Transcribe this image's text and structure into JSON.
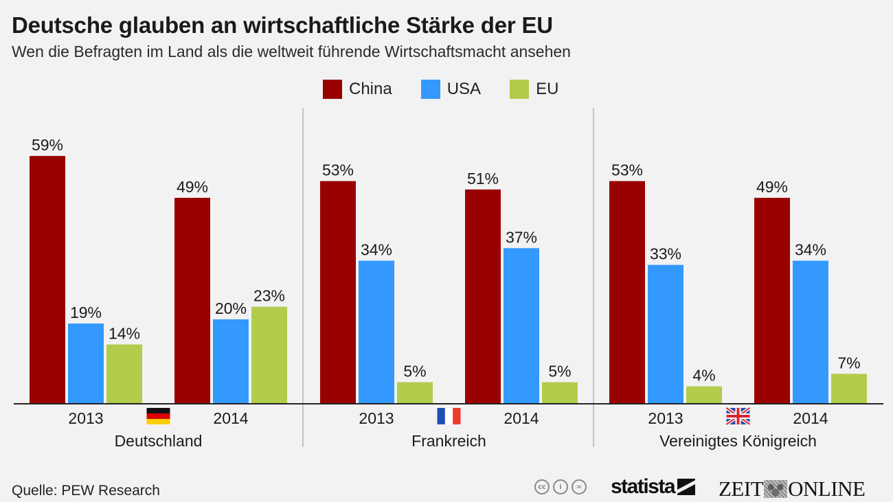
{
  "header": {
    "title": "Deutsche glauben an wirtschaftliche Stärke der EU",
    "subtitle": "Wen die Befragten im Land als die weltweit führende Wirtschaftsmacht ansehen"
  },
  "legend": [
    {
      "label": "China",
      "color": "#990000"
    },
    {
      "label": "USA",
      "color": "#3399ff"
    },
    {
      "label": "EU",
      "color": "#b2cc4c"
    }
  ],
  "chart_data": {
    "type": "bar",
    "title": "Deutsche glauben an wirtschaftliche Stärke der EU",
    "subtitle": "Wen die Befragten im Land als die weltweit führende Wirtschaftsmacht ansehen",
    "xlabel": "",
    "ylabel": "",
    "unit": "%",
    "ylim": [
      0,
      60
    ],
    "grid": false,
    "legend_position": "top-center",
    "series_names": [
      "China",
      "USA",
      "EU"
    ],
    "series_colors": [
      "#990000",
      "#3399ff",
      "#b2cc4c"
    ],
    "groups": [
      {
        "country": "Deutschland",
        "flag": "germany-flag",
        "years": [
          {
            "year": "2013",
            "values": [
              59,
              19,
              14
            ]
          },
          {
            "year": "2014",
            "values": [
              49,
              20,
              23
            ]
          }
        ]
      },
      {
        "country": "Frankreich",
        "flag": "france-flag",
        "years": [
          {
            "year": "2013",
            "values": [
              53,
              34,
              5
            ]
          },
          {
            "year": "2014",
            "values": [
              51,
              37,
              5
            ]
          }
        ]
      },
      {
        "country": "Vereinigtes Königreich",
        "flag": "uk-flag",
        "years": [
          {
            "year": "2013",
            "values": [
              53,
              33,
              4
            ]
          },
          {
            "year": "2014",
            "values": [
              49,
              34,
              7
            ]
          }
        ]
      }
    ]
  },
  "footer": {
    "source": "Quelle: PEW Research",
    "license_icons": [
      "cc-icon",
      "by-icon",
      "nd-icon"
    ],
    "license_glyphs": [
      "cc",
      "i",
      "="
    ],
    "brand_statista": "statista",
    "brand_zeit_left": "ZEIT",
    "brand_zeit_right": "ONLINE"
  }
}
